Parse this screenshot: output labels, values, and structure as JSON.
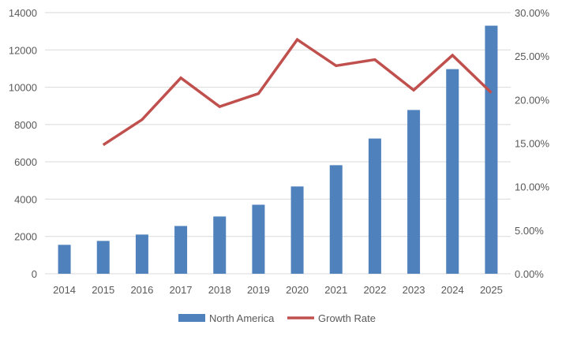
{
  "chart_data": {
    "type": "bar+line",
    "title": "",
    "xlabel": "",
    "ylabel": "",
    "categories": [
      "2014",
      "2015",
      "2016",
      "2017",
      "2018",
      "2019",
      "2020",
      "2021",
      "2022",
      "2023",
      "2024",
      "2025"
    ],
    "y_left": {
      "lim": [
        0,
        14000
      ],
      "ticks": [
        "0",
        "2000",
        "4000",
        "6000",
        "8000",
        "10000",
        "12000",
        "14000"
      ]
    },
    "y_right": {
      "lim": [
        0,
        30
      ],
      "ticks": [
        "0.00%",
        "5.00%",
        "10.00%",
        "15.00%",
        "20.00%",
        "25.00%",
        "30.00%"
      ]
    },
    "grid": true,
    "legend_position": "bottom",
    "series": [
      {
        "name": "North America",
        "type": "bar",
        "axis": "left",
        "color": "#4f81bd",
        "values": [
          1550,
          1760,
          2100,
          2560,
          3070,
          3700,
          4680,
          5820,
          7250,
          8780,
          10970,
          13300
        ]
      },
      {
        "name": "Growth Rate",
        "type": "line",
        "axis": "right",
        "color": "#c0504d",
        "values": [
          null,
          14.8,
          17.7,
          22.5,
          19.2,
          20.7,
          26.9,
          23.9,
          24.6,
          21.1,
          25.1,
          20.8
        ]
      }
    ]
  }
}
